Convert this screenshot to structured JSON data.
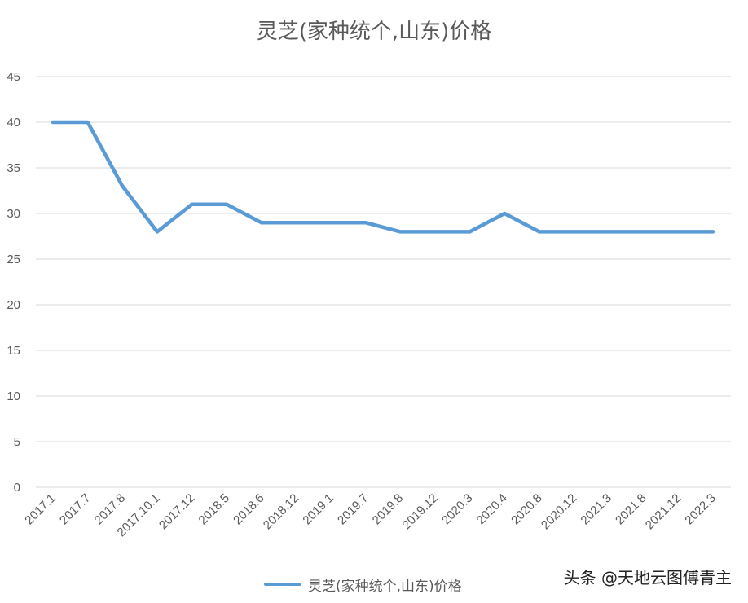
{
  "chart_data": {
    "type": "line",
    "title": "灵芝(家种统个,山东)价格",
    "xlabel": "",
    "ylabel": "",
    "categories": [
      "2017.1",
      "2017.7",
      "2017.8",
      "2017.10.1",
      "2017.12",
      "2018.5",
      "2018.6",
      "2018.12",
      "2019.1",
      "2019.7",
      "2019.8",
      "2019.12",
      "2020.3",
      "2020.4",
      "2020.8",
      "2020.12",
      "2021.3",
      "2021.8",
      "2021.12",
      "2022.3"
    ],
    "series": [
      {
        "name": "灵芝(家种统个,山东)价格",
        "color": "#5b9bd5",
        "values": [
          40,
          40,
          33,
          28,
          31,
          31,
          29,
          29,
          29,
          29,
          28,
          28,
          28,
          30,
          28,
          28,
          28,
          28,
          28,
          28
        ]
      }
    ],
    "ylim": [
      0,
      45
    ],
    "yticks": [
      0,
      5,
      10,
      15,
      20,
      25,
      30,
      35,
      40,
      45
    ],
    "grid": true,
    "legend": "bottom"
  },
  "watermark": "头条 @天地云图傅青主"
}
